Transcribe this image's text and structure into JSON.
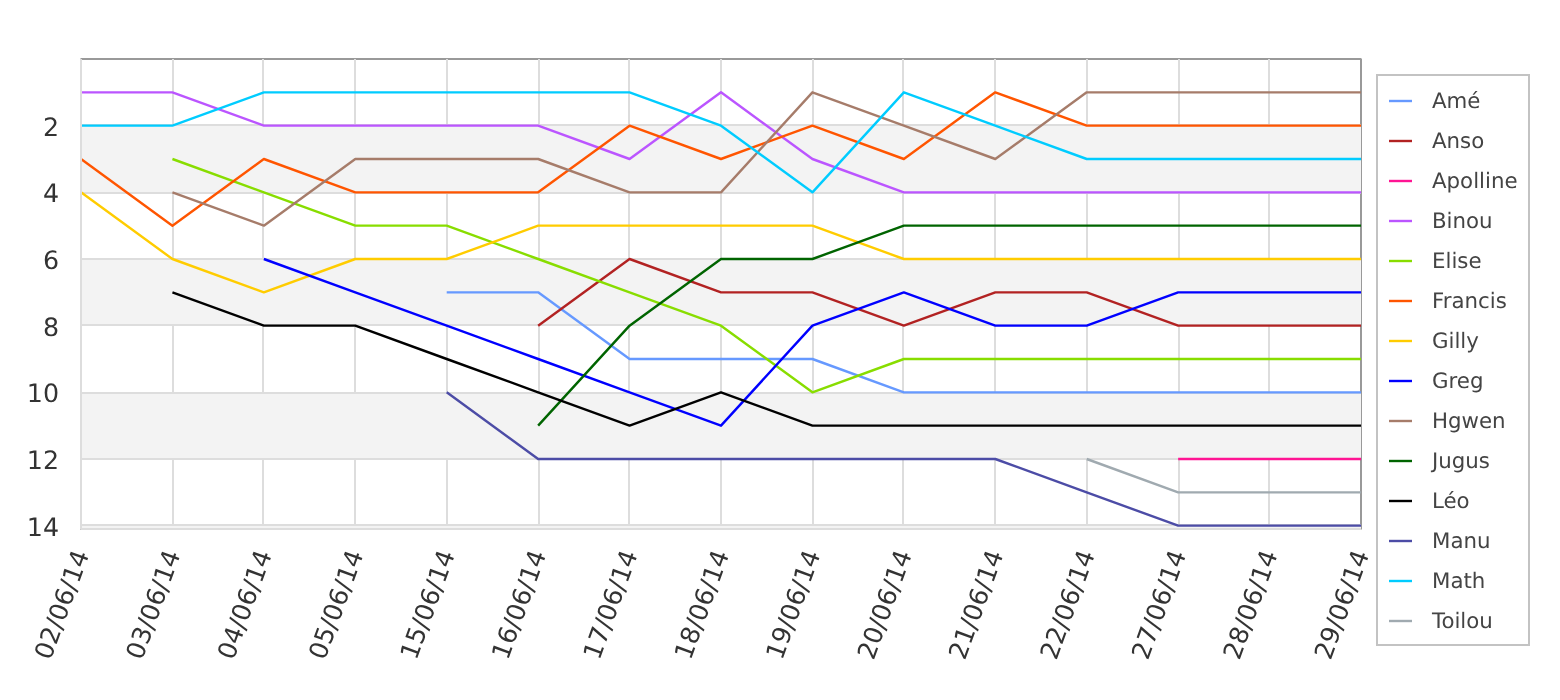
{
  "chart_data": {
    "type": "line",
    "categories": [
      "02/06/14",
      "03/06/14",
      "04/06/14",
      "05/06/14",
      "15/06/14",
      "16/06/14",
      "17/06/14",
      "18/06/14",
      "19/06/14",
      "20/06/14",
      "21/06/14",
      "22/06/14",
      "27/06/14",
      "28/06/14",
      "29/06/14"
    ],
    "ylim": [
      14.1,
      0
    ],
    "yticks": [
      2,
      4,
      6,
      8,
      10,
      12,
      14
    ],
    "grid": true,
    "legend": "right",
    "marker": "none",
    "line_style": "solid",
    "series": [
      {
        "name": "Amé",
        "color": "#6699ff",
        "values": [
          null,
          null,
          null,
          null,
          7,
          7,
          9,
          9,
          9,
          10,
          10,
          10,
          10,
          10,
          10
        ]
      },
      {
        "name": "Anso",
        "color": "#b22222",
        "values": [
          null,
          null,
          null,
          null,
          null,
          8,
          6,
          7,
          7,
          8,
          7,
          7,
          8,
          8,
          8
        ]
      },
      {
        "name": "Apolline",
        "color": "#ff1493",
        "values": [
          null,
          null,
          null,
          null,
          null,
          null,
          null,
          null,
          null,
          null,
          null,
          null,
          12,
          12,
          12
        ]
      },
      {
        "name": "Binou",
        "color": "#bb55ff",
        "values": [
          1,
          1,
          2,
          2,
          2,
          2,
          3,
          1,
          3,
          4,
          4,
          4,
          4,
          4,
          4
        ]
      },
      {
        "name": "Elise",
        "color": "#88dd00",
        "values": [
          null,
          3,
          4,
          5,
          5,
          6,
          7,
          8,
          10,
          9,
          9,
          9,
          9,
          9,
          9
        ]
      },
      {
        "name": "Francis",
        "color": "#ff5500",
        "values": [
          3,
          5,
          3,
          4,
          4,
          4,
          2,
          3,
          2,
          3,
          1,
          2,
          2,
          2,
          2
        ]
      },
      {
        "name": "Gilly",
        "color": "#ffcc00",
        "values": [
          4,
          6,
          7,
          6,
          6,
          5,
          5,
          5,
          5,
          6,
          6,
          6,
          6,
          6,
          6
        ]
      },
      {
        "name": "Greg",
        "color": "#0000ff",
        "values": [
          null,
          null,
          6,
          7,
          8,
          9,
          10,
          11,
          8,
          7,
          8,
          8,
          7,
          7,
          7
        ]
      },
      {
        "name": "Hgwen",
        "color": "#a67c6a",
        "values": [
          null,
          4,
          5,
          3,
          3,
          3,
          4,
          4,
          1,
          2,
          3,
          1,
          1,
          1,
          1
        ]
      },
      {
        "name": "Jugus",
        "color": "#006400",
        "values": [
          null,
          null,
          null,
          null,
          null,
          11,
          8,
          6,
          6,
          5,
          5,
          5,
          5,
          5,
          5
        ]
      },
      {
        "name": "Léo",
        "color": "#000000",
        "values": [
          null,
          7,
          8,
          8,
          9,
          10,
          11,
          10,
          11,
          11,
          11,
          11,
          11,
          11,
          11
        ]
      },
      {
        "name": "Manu",
        "color": "#4c4ca6",
        "values": [
          null,
          null,
          null,
          null,
          10,
          12,
          12,
          12,
          12,
          12,
          12,
          13,
          14,
          14,
          14
        ]
      },
      {
        "name": "Math",
        "color": "#00ccff",
        "values": [
          2,
          2,
          1,
          1,
          1,
          1,
          1,
          2,
          4,
          1,
          2,
          3,
          3,
          3,
          3
        ]
      },
      {
        "name": "Toilou",
        "color": "#a0aab0",
        "values": [
          null,
          null,
          null,
          null,
          null,
          null,
          null,
          null,
          null,
          null,
          null,
          12,
          13,
          13,
          13
        ]
      }
    ]
  }
}
